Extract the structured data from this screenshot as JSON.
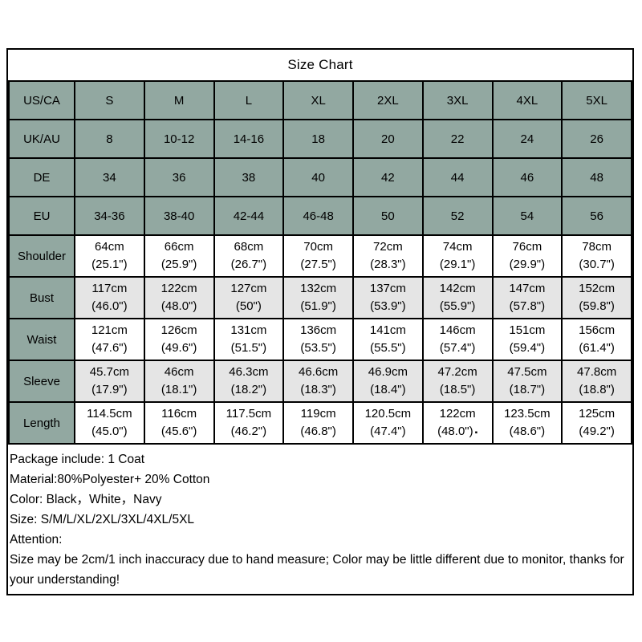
{
  "colors": {
    "header_green": "#92a8a1",
    "row_shade": "#e5e5e5",
    "border": "#000000",
    "background": "#ffffff"
  },
  "chart_data": {
    "type": "table",
    "title": "Size Chart",
    "size_rows": [
      {
        "label": "US/CA",
        "values": [
          "S",
          "M",
          "L",
          "XL",
          "2XL",
          "3XL",
          "4XL",
          "5XL"
        ]
      },
      {
        "label": "UK/AU",
        "values": [
          "8",
          "10-12",
          "14-16",
          "18",
          "20",
          "22",
          "24",
          "26"
        ]
      },
      {
        "label": "DE",
        "values": [
          "34",
          "36",
          "38",
          "40",
          "42",
          "44",
          "46",
          "48"
        ]
      },
      {
        "label": "EU",
        "values": [
          "34-36",
          "38-40",
          "42-44",
          "46-48",
          "50",
          "52",
          "54",
          "56"
        ]
      }
    ],
    "measure_rows": [
      {
        "label": "Shoulder",
        "values": [
          "64cm\n(25.1\")",
          "66cm\n(25.9\")",
          "68cm\n(26.7\")",
          "70cm\n(27.5\")",
          "72cm\n(28.3\")",
          "74cm\n(29.1\")",
          "76cm\n(29.9\")",
          "78cm\n(30.7\")"
        ]
      },
      {
        "label": "Bust",
        "values": [
          "117cm\n(46.0\")",
          "122cm\n(48.0\")",
          "127cm\n(50\")",
          "132cm\n(51.9\")",
          "137cm\n(53.9\")",
          "142cm\n(55.9\")",
          "147cm\n(57.8\")",
          "152cm\n(59.8\")"
        ]
      },
      {
        "label": "Waist",
        "values": [
          "121cm\n(47.6\")",
          "126cm\n(49.6\")",
          "131cm\n(51.5\")",
          "136cm\n(53.5\")",
          "141cm\n(55.5\")",
          "146cm\n(57.4\")",
          "151cm\n(59.4\")",
          "156cm\n(61.4\")"
        ]
      },
      {
        "label": "Sleeve",
        "values": [
          "45.7cm\n(17.9\")",
          "46cm\n(18.1\")",
          "46.3cm\n(18.2\")",
          "46.6cm\n(18.3\")",
          "46.9cm\n(18.4\")",
          "47.2cm\n(18.5\")",
          "47.5cm\n(18.7\")",
          "47.8cm\n(18.8\")"
        ]
      },
      {
        "label": "Length",
        "values": [
          "114.5cm\n(45.0\")",
          "116cm\n(45.6\")",
          "117.5cm\n(46.2\")",
          "119cm\n(46.8\")",
          "120.5cm\n(47.4\")",
          "122cm\n(48.0\")",
          "123.5cm\n(48.6\")",
          "125cm\n(49.2\")"
        ]
      }
    ],
    "stray_mark": {
      "row_index": 4,
      "col_index": 5,
      "glyph": "▪"
    }
  },
  "notes": [
    "Package include: 1 Coat",
    "Material:80%Polyester+ 20% Cotton",
    "Color: Black，White，Navy",
    "Size: S/M/L/XL/2XL/3XL/4XL/5XL",
    "Attention:",
    "Size may be 2cm/1 inch inaccuracy due to hand measure; Color may be little different due to monitor, thanks for your understanding!"
  ]
}
